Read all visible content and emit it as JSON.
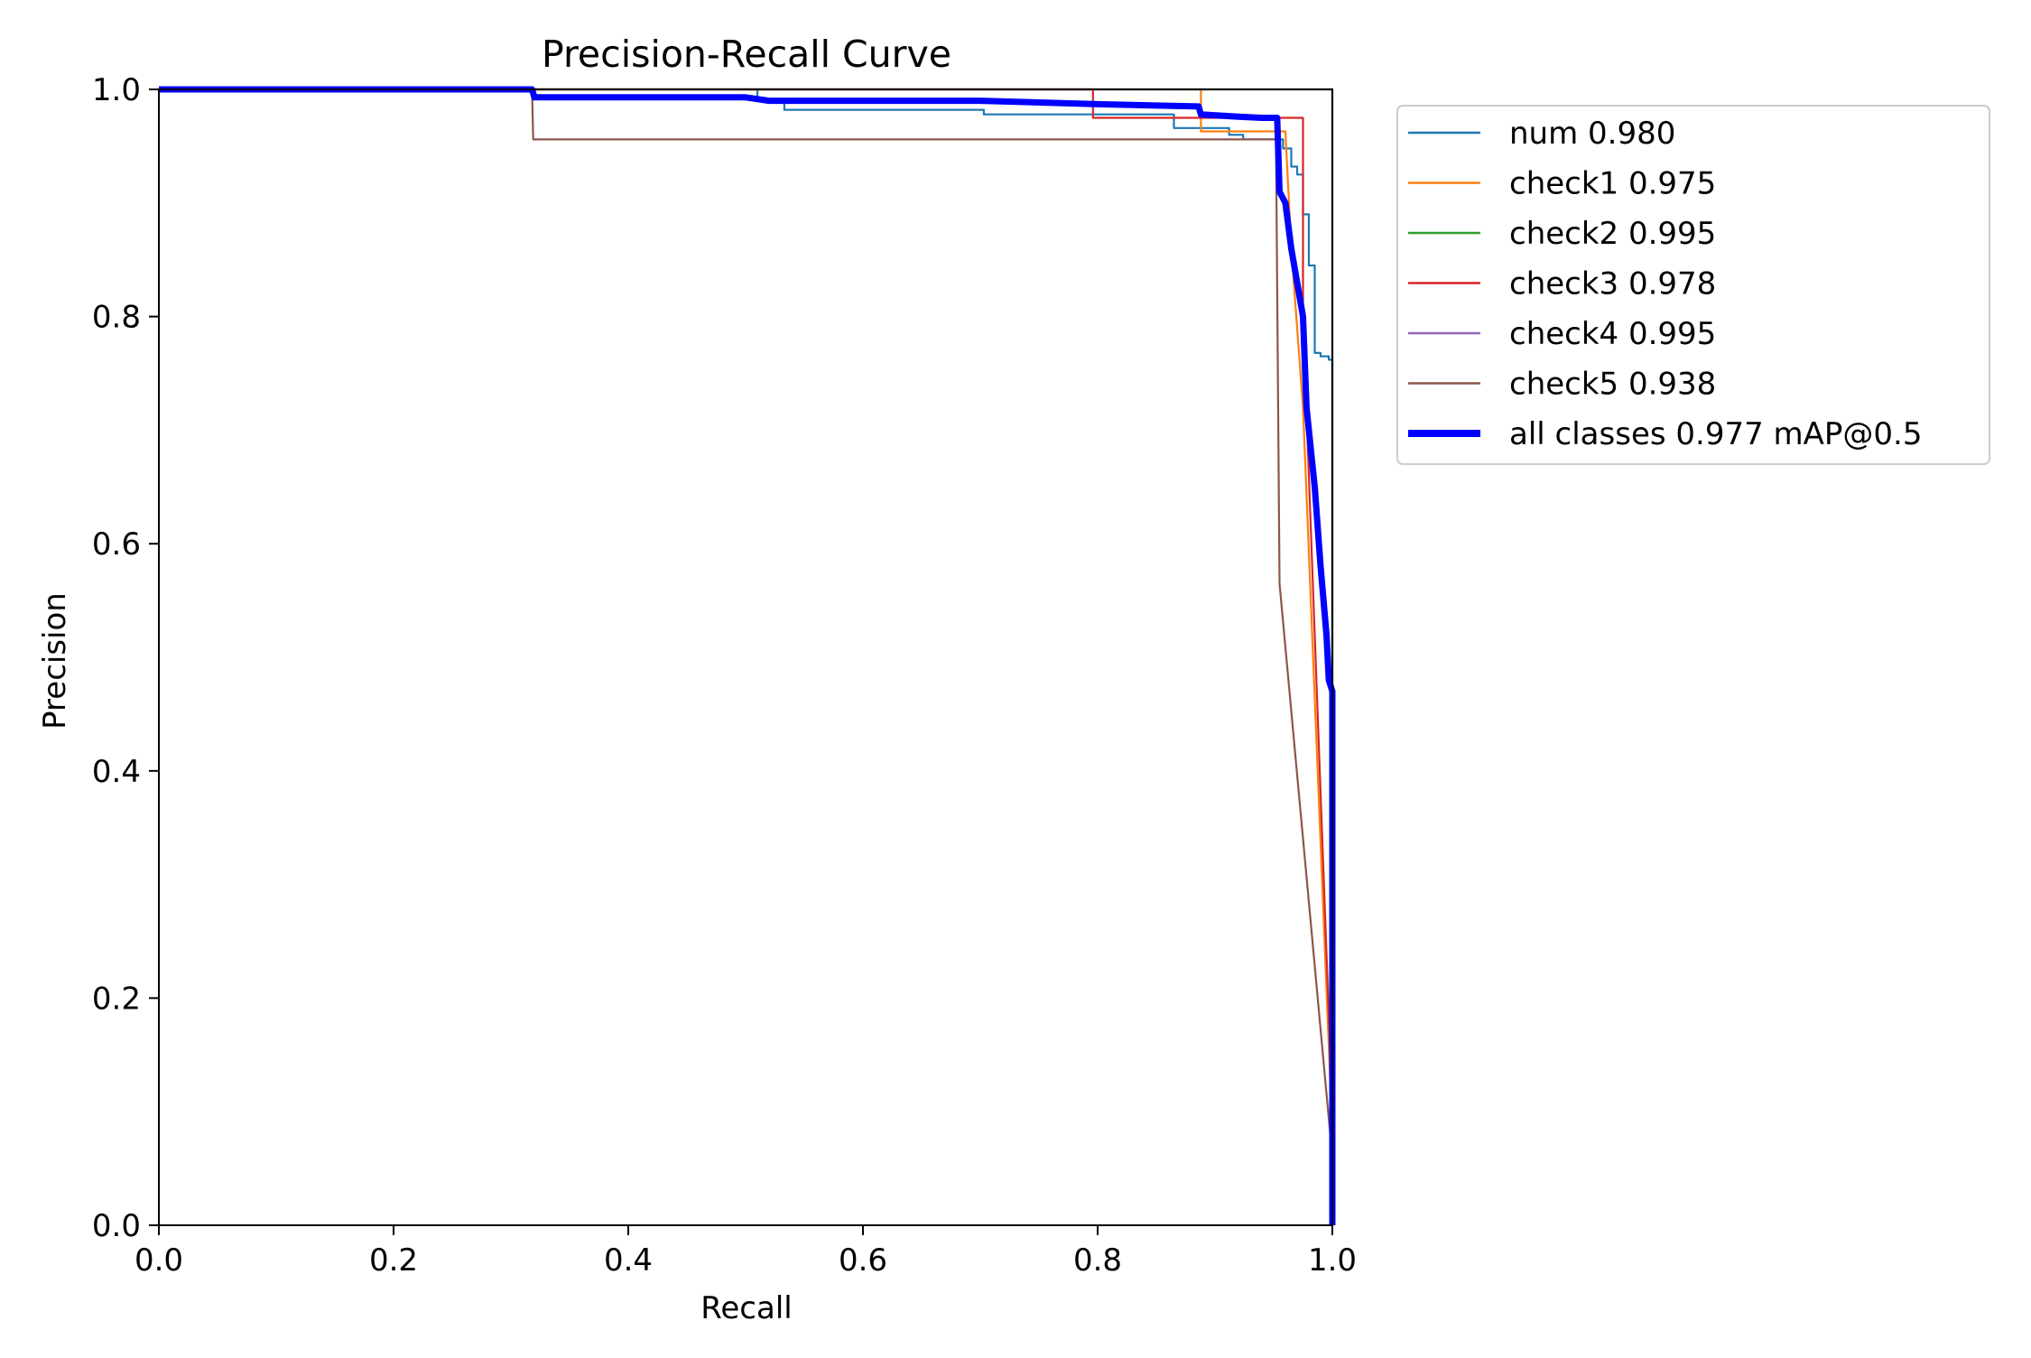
{
  "chart_data": {
    "type": "line",
    "title": "Precision-Recall Curve",
    "xlabel": "Recall",
    "ylabel": "Precision",
    "xlim": [
      0,
      1
    ],
    "ylim": [
      0,
      1
    ],
    "xticks": [
      "0.0",
      "0.2",
      "0.4",
      "0.6",
      "0.8",
      "1.0"
    ],
    "yticks": [
      "0.0",
      "0.2",
      "0.4",
      "0.6",
      "0.8",
      "1.0"
    ],
    "grid": false,
    "legend_position": "outside-top-right",
    "series": [
      {
        "name": "num 0.980",
        "color": "#1f77b4",
        "width": "thin",
        "points": [
          [
            0,
            1
          ],
          [
            0.51,
            1
          ],
          [
            0.51,
            0.99
          ],
          [
            0.533,
            0.99
          ],
          [
            0.533,
            0.982
          ],
          [
            0.703,
            0.982
          ],
          [
            0.703,
            0.978
          ],
          [
            0.865,
            0.978
          ],
          [
            0.865,
            0.966
          ],
          [
            0.912,
            0.966
          ],
          [
            0.912,
            0.96
          ],
          [
            0.924,
            0.96
          ],
          [
            0.924,
            0.956
          ],
          [
            0.958,
            0.956
          ],
          [
            0.958,
            0.948
          ],
          [
            0.965,
            0.948
          ],
          [
            0.965,
            0.932
          ],
          [
            0.97,
            0.932
          ],
          [
            0.97,
            0.925
          ],
          [
            0.975,
            0.925
          ],
          [
            0.975,
            0.89
          ],
          [
            0.98,
            0.89
          ],
          [
            0.98,
            0.845
          ],
          [
            0.985,
            0.845
          ],
          [
            0.985,
            0.768
          ],
          [
            0.99,
            0.768
          ],
          [
            0.99,
            0.765
          ],
          [
            0.997,
            0.765
          ],
          [
            0.997,
            0.762
          ],
          [
            1.0,
            0.762
          ],
          [
            1.0,
            0
          ]
        ]
      },
      {
        "name": "check1 0.975",
        "color": "#ff7f0e",
        "width": "thin",
        "points": [
          [
            0,
            1
          ],
          [
            0.888,
            1
          ],
          [
            0.888,
            0.963
          ],
          [
            0.96,
            0.963
          ],
          [
            0.965,
            0.86
          ],
          [
            0.975,
            0.72
          ],
          [
            1.0,
            0.08
          ],
          [
            1.0,
            0
          ]
        ]
      },
      {
        "name": "check2 0.995",
        "color": "#2ca02c",
        "width": "thin",
        "points": [
          [
            0,
            1
          ],
          [
            1.0,
            1
          ],
          [
            1.0,
            0
          ]
        ]
      },
      {
        "name": "check3 0.978",
        "color": "#d62728",
        "width": "thin",
        "points": [
          [
            0,
            1
          ],
          [
            0.796,
            1
          ],
          [
            0.796,
            0.975
          ],
          [
            0.975,
            0.975
          ],
          [
            0.975,
            0.8
          ],
          [
            1.0,
            0.1
          ],
          [
            1.0,
            0
          ]
        ]
      },
      {
        "name": "check4 0.995",
        "color": "#9467bd",
        "width": "thin",
        "points": [
          [
            0,
            1
          ],
          [
            1.0,
            1
          ],
          [
            1.0,
            0.5
          ],
          [
            1.0,
            0
          ]
        ]
      },
      {
        "name": "check5 0.938",
        "color": "#8c564b",
        "width": "thin",
        "points": [
          [
            0,
            1
          ],
          [
            0.318,
            1
          ],
          [
            0.319,
            0.956
          ],
          [
            0.952,
            0.956
          ],
          [
            0.955,
            0.565
          ],
          [
            1.0,
            0.06
          ],
          [
            1.0,
            0
          ]
        ]
      },
      {
        "name": "all classes 0.977 mAP@0.5",
        "color": "#0000ff",
        "width": "thick",
        "points": [
          [
            0,
            1
          ],
          [
            0.318,
            1
          ],
          [
            0.32,
            0.993
          ],
          [
            0.5,
            0.993
          ],
          [
            0.52,
            0.99
          ],
          [
            0.7,
            0.99
          ],
          [
            0.8,
            0.987
          ],
          [
            0.886,
            0.985
          ],
          [
            0.888,
            0.978
          ],
          [
            0.92,
            0.976
          ],
          [
            0.94,
            0.975
          ],
          [
            0.953,
            0.975
          ],
          [
            0.955,
            0.91
          ],
          [
            0.96,
            0.9
          ],
          [
            0.965,
            0.86
          ],
          [
            0.975,
            0.8
          ],
          [
            0.978,
            0.72
          ],
          [
            0.985,
            0.65
          ],
          [
            0.99,
            0.58
          ],
          [
            0.995,
            0.52
          ],
          [
            0.997,
            0.48
          ],
          [
            1.0,
            0.47
          ],
          [
            1.0,
            0
          ]
        ]
      }
    ]
  }
}
